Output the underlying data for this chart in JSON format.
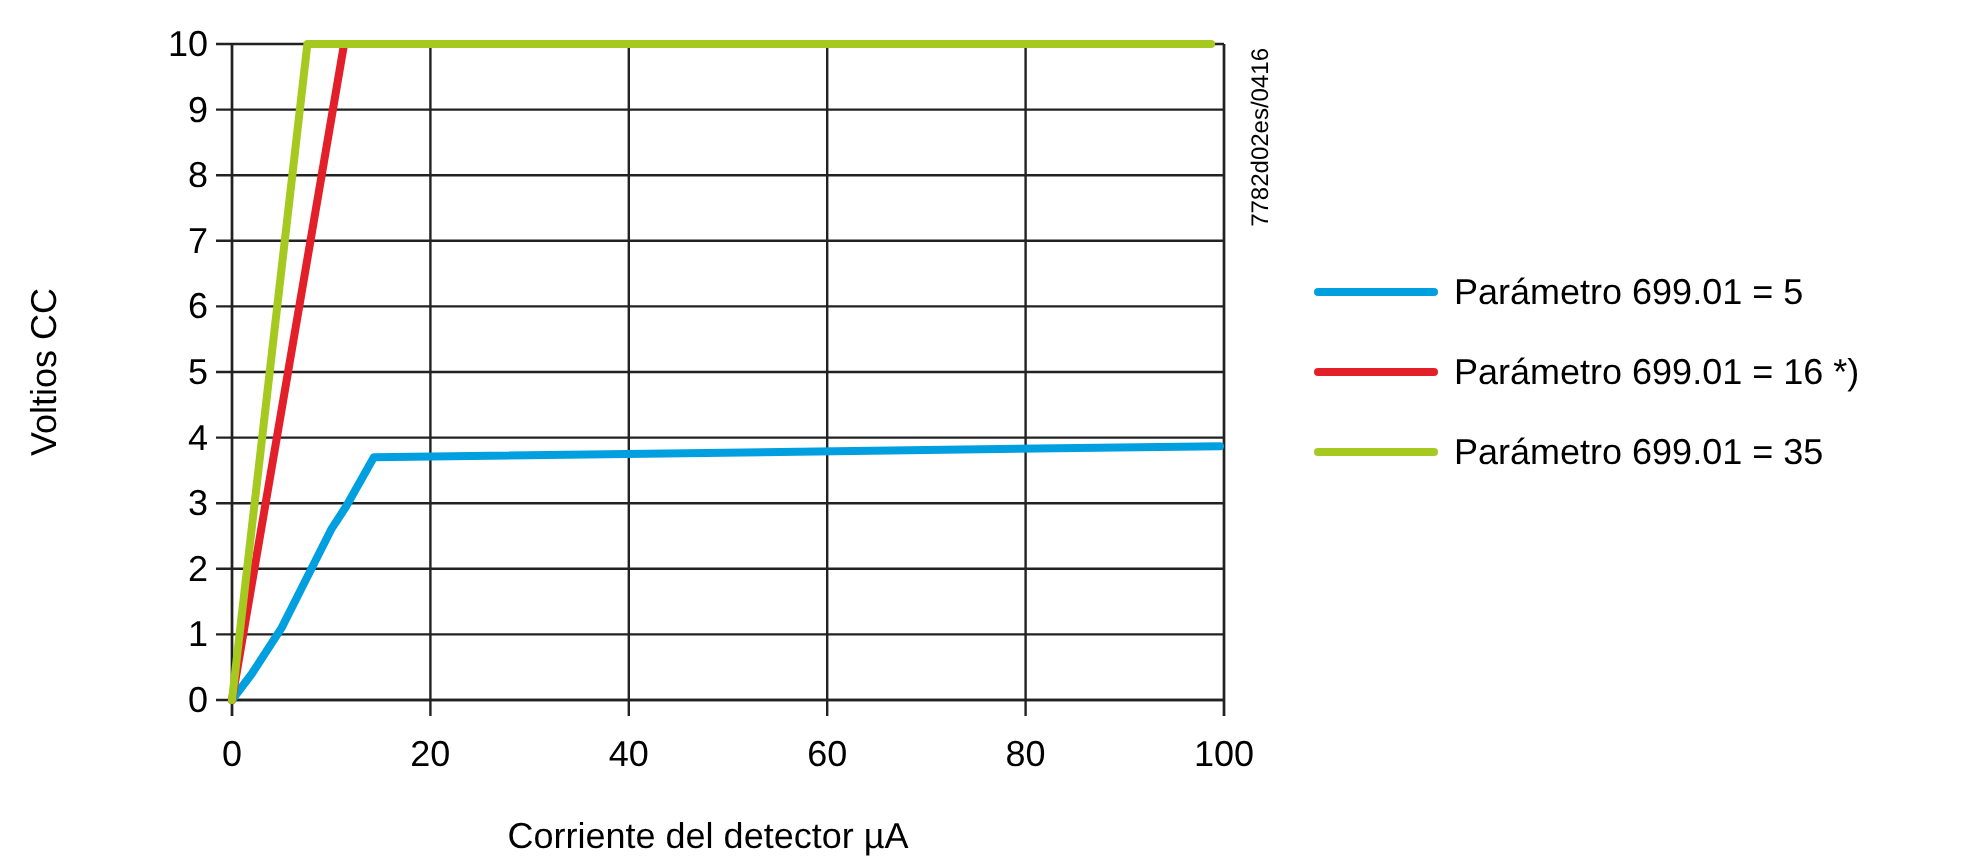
{
  "chart_data": {
    "type": "line",
    "xlabel": "Corriente del detector µA",
    "ylabel": "Voltios CC",
    "xlim": [
      0,
      100
    ],
    "ylim": [
      0,
      10
    ],
    "xticks": [
      0,
      20,
      40,
      60,
      80,
      100
    ],
    "yticks": [
      0,
      1,
      2,
      3,
      4,
      5,
      6,
      7,
      8,
      9,
      10
    ],
    "grid": true,
    "legend": "right",
    "marker": "none",
    "line_style": "solid",
    "annotations": [
      "7782d02es/0416"
    ],
    "series": [
      {
        "name": "Parámetro 699.01 = 5",
        "color": "#00a0e0",
        "x": [
          0,
          2,
          5,
          7,
          10,
          11.5,
          14.3,
          99.6
        ],
        "values": [
          0,
          0.4,
          1.1,
          1.7,
          2.6,
          2.95,
          3.7,
          3.87
        ]
      },
      {
        "name": "Parámetro 699.01 = 16 *)",
        "color": "#e3202a",
        "x": [
          0,
          11.3
        ],
        "values": [
          0,
          10
        ]
      },
      {
        "name": "Parámetro 699.01 = 35",
        "color": "#a5c91e",
        "x": [
          0,
          7.6,
          98.7
        ],
        "values": [
          0,
          10,
          10
        ]
      }
    ]
  }
}
